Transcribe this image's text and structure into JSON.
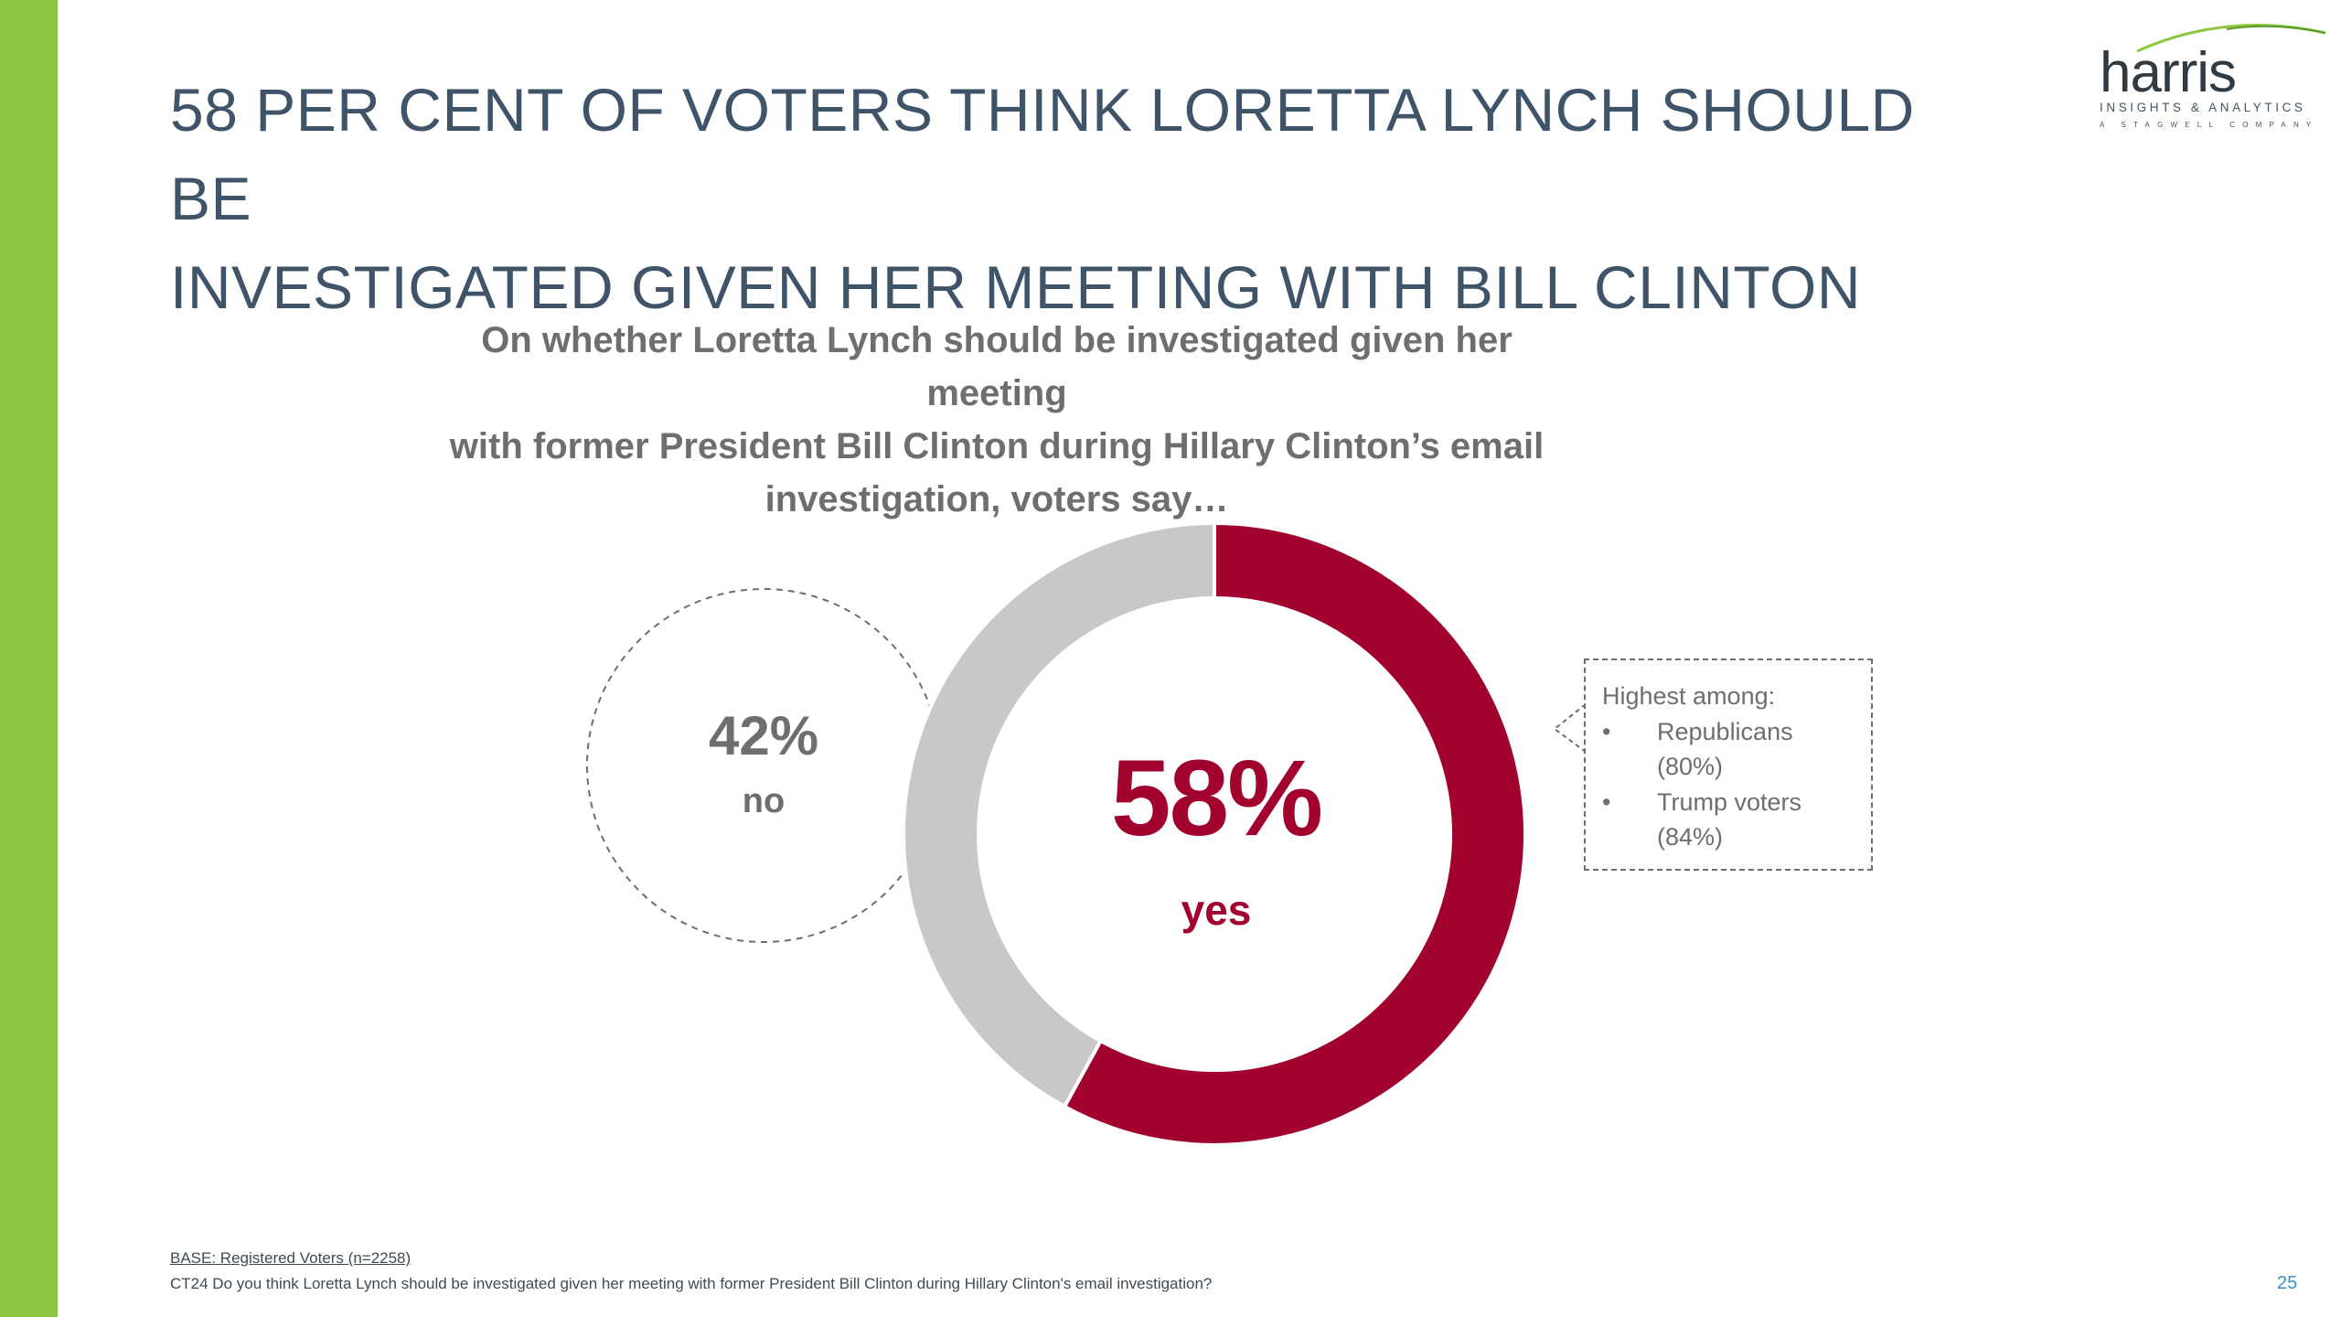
{
  "slide": {
    "title_line1": "58 PER CENT OF VOTERS THINK LORETTA LYNCH SHOULD BE",
    "title_line2": "INVESTIGATED GIVEN HER MEETING WITH BILL CLINTON",
    "subtitle_line1": "On whether Loretta Lynch should be investigated given her meeting",
    "subtitle_line2": "with former President Bill Clinton during Hillary Clinton’s email",
    "subtitle_line3": "investigation, voters say…",
    "page_number": "25"
  },
  "logo": {
    "word": "harris",
    "tagline": "INSIGHTS & ANALYTICS",
    "subline": "A STAGWELL COMPANY",
    "accent_color": "#8dc63f"
  },
  "chart_data": {
    "type": "pie",
    "variant": "donut",
    "slices": [
      {
        "label": "yes",
        "value": 58,
        "display": "58%",
        "color": "#a1022e"
      },
      {
        "label": "no",
        "value": 42,
        "display": "42%",
        "color": "#c8c8c8"
      }
    ],
    "start_angle": "12 o'clock, clockwise"
  },
  "callout": {
    "heading": "Highest among:",
    "bullet": "•",
    "items": [
      {
        "line1": "Republicans",
        "line2": "(80%)"
      },
      {
        "line1": "Trump voters",
        "line2": "(84%)"
      }
    ]
  },
  "footer": {
    "base": "BASE: Registered Voters (n=2258)",
    "question": "CT24 Do you think Loretta Lynch should be investigated given her meeting with former President Bill Clinton during Hillary Clinton's email investigation?"
  },
  "colors": {
    "sidebar": "#8dc63f",
    "title": "#3f5468",
    "yes": "#a1022e",
    "no": "#c8c8c8",
    "text_gray": "#6d6e70",
    "page_number": "#3a8fc7"
  }
}
